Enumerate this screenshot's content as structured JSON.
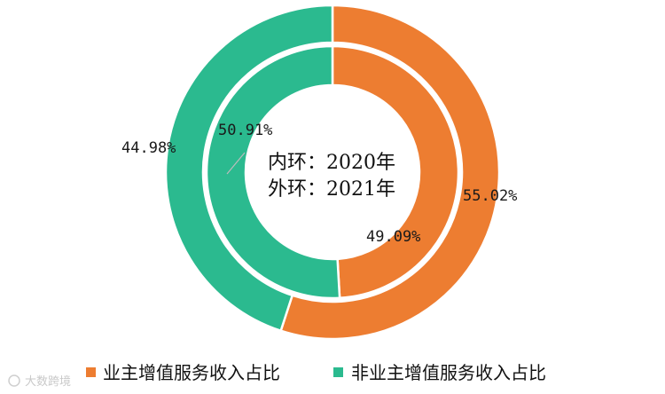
{
  "chart_data": {
    "type": "pie",
    "subtype": "nested-donut",
    "series": [
      {
        "name": "外环：2021年",
        "ring": "outer",
        "values": [
          55.02,
          44.98
        ],
        "labels": [
          "55.02%",
          "44.98%"
        ]
      },
      {
        "name": "内环：2020年",
        "ring": "inner",
        "values": [
          49.09,
          50.91
        ],
        "labels": [
          "49.09%",
          "50.91%"
        ]
      }
    ],
    "categories": [
      "业主增值服务收入占比",
      "非业主增值服务收入占比"
    ],
    "colors": [
      "#ED7D31",
      "#2BBA8F"
    ],
    "center_text": [
      "内环：2020年",
      "外环：2021年"
    ],
    "legend": {
      "placement": "bottom",
      "entries": [
        "业主增值服务收入占比",
        "非业主增值服务收入占比"
      ]
    }
  },
  "watermark": "大数跨境"
}
